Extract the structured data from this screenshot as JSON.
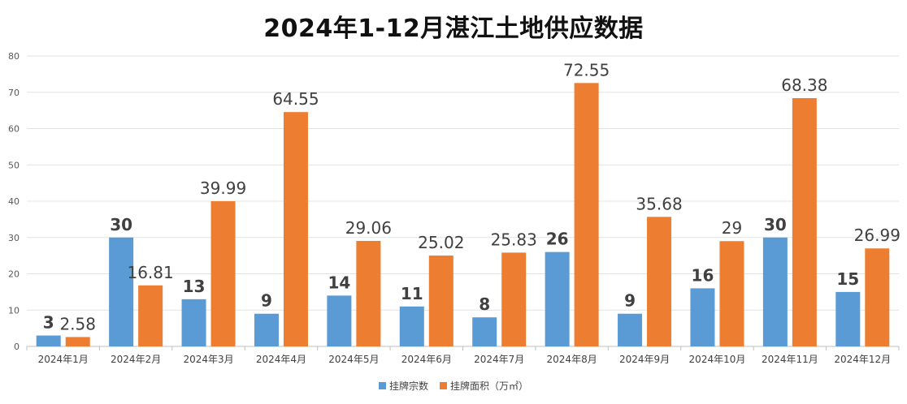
{
  "chart_data": {
    "type": "bar",
    "title": "2024年1-12月湛江土地供应数据",
    "categories": [
      "2024年1月",
      "2024年2月",
      "2024年3月",
      "2024年4月",
      "2024年5月",
      "2024年6月",
      "2024年7月",
      "2024年8月",
      "2024年9月",
      "2024年10月",
      "2024年11月",
      "2024年12月"
    ],
    "series": [
      {
        "name": "挂牌宗数",
        "color": "#5b9bd5",
        "values": [
          3,
          30,
          13,
          9,
          14,
          11,
          8,
          26,
          9,
          16,
          30,
          15
        ],
        "labels": [
          "3",
          "30",
          "13",
          "9",
          "14",
          "11",
          "8",
          "26",
          "9",
          "16",
          "30",
          "15"
        ]
      },
      {
        "name": "挂牌面积（万㎡）",
        "color": "#ed7d31",
        "values": [
          2.58,
          16.81,
          39.99,
          64.55,
          29.06,
          25.02,
          25.83,
          72.55,
          35.68,
          29,
          68.38,
          26.99
        ],
        "labels": [
          "2.58",
          "16.81",
          "39.99",
          "64.55",
          "29.06",
          "25.02",
          "25.83",
          "72.55",
          "35.68",
          "29",
          "68.38",
          "26.99"
        ]
      }
    ],
    "ylim": [
      0,
      80
    ],
    "yticks": [
      "0",
      "10",
      "20",
      "30",
      "40",
      "50",
      "60",
      "70",
      "80"
    ],
    "grid": true,
    "legend_position": "bottom"
  }
}
